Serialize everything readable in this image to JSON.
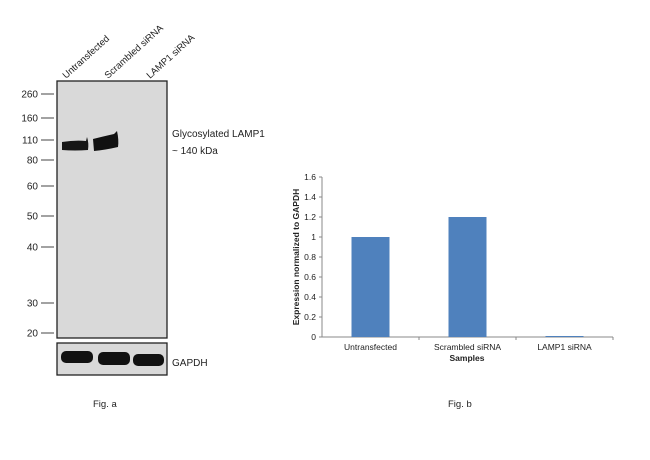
{
  "blot": {
    "lanes": [
      "Untransfected",
      "Scrambled siRNA",
      "LAMP1 siRNA"
    ],
    "markers": [
      "260",
      "160",
      "110",
      "80",
      "60",
      "50",
      "40",
      "30",
      "20"
    ],
    "band_label_line1": "Glycosylated LAMP1",
    "band_label_line2": "~ 140 kDa",
    "loading_control_label": "GAPDH",
    "caption": "Fig. a",
    "colors": {
      "membrane": "#d9d9d9",
      "band": "#111111"
    }
  },
  "chart_data": {
    "type": "bar",
    "categories": [
      "Untransfected",
      "Scrambled siRNA",
      "LAMP1 siRNA"
    ],
    "values": [
      1.0,
      1.2,
      0.01
    ],
    "xlabel": "Samples",
    "ylabel": "Expression normalized to GAPDH",
    "ylim": [
      0,
      1.6
    ],
    "yticks": [
      "0",
      "0.2",
      "0.4",
      "0.6",
      "0.8",
      "1",
      "1.2",
      "1.4",
      "1.6"
    ],
    "grid": false,
    "bar_color": "#4f81bd",
    "caption": "Fig. b"
  }
}
